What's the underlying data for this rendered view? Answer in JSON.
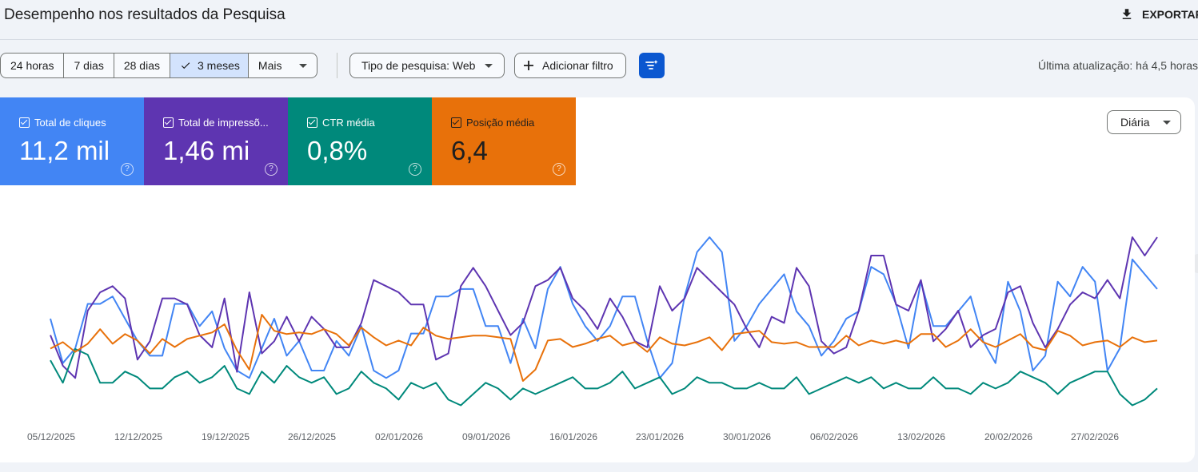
{
  "header": {
    "title": "Desempenho nos resultados da Pesquisa",
    "export_label": "EXPORTAR"
  },
  "date_range": {
    "options": [
      "24 horas",
      "7 dias",
      "28 dias",
      "3 meses",
      "Mais"
    ],
    "selected": "3 meses"
  },
  "filters": {
    "search_type": "Tipo de pesquisa: Web",
    "add_filter": "Adicionar filtro"
  },
  "last_updated": "Última atualização: há 4,5 horas",
  "metrics": [
    {
      "label": "Total de cliques",
      "value": "11,2 mil",
      "color": "#4285f4"
    },
    {
      "label": "Total de impressõ...",
      "value": "1,46 mi",
      "color": "#5e35b1"
    },
    {
      "label": "CTR média",
      "value": "0,8%",
      "color": "#00897b"
    },
    {
      "label": "Posição média",
      "value": "6,4",
      "color": "#e8710a"
    }
  ],
  "granularity": "Diária",
  "chart_data": {
    "type": "line",
    "x_tick_labels": [
      "05/12/2025",
      "12/12/2025",
      "19/12/2025",
      "26/12/2025",
      "02/01/2026",
      "09/01/2026",
      "16/01/2026",
      "23/01/2026",
      "30/01/2026",
      "06/02/2026",
      "13/02/2026",
      "20/02/2026",
      "27/02/2026"
    ],
    "x_range": [
      "04/12/2025",
      "03/03/2026"
    ],
    "y_axis": "none",
    "grid": false,
    "legend": "none",
    "series": [
      {
        "name": "Total de cliques",
        "color": "#4285f4",
        "values": [
          39,
          45,
          43,
          37,
          37,
          36,
          39,
          42,
          44,
          44,
          37,
          37,
          40,
          38,
          43,
          46,
          47,
          43,
          39,
          44,
          42,
          46,
          46,
          42,
          44,
          40,
          46,
          47,
          46,
          41,
          41,
          36,
          36,
          35,
          35,
          40,
          40,
          45,
          39,
          43,
          35,
          32,
          37,
          40,
          42,
          40,
          36,
          36,
          42,
          47,
          45,
          36,
          30,
          28,
          30,
          42,
          40,
          37,
          35,
          33,
          38,
          40,
          44,
          42,
          39,
          38,
          32,
          33,
          37,
          43,
          34,
          40,
          40,
          38,
          36,
          42,
          45,
          34,
          38,
          46,
          44,
          34,
          36,
          32,
          34,
          46,
          43,
          31,
          33,
          35
        ]
      },
      {
        "name": "Total de impressões",
        "color": "#5e35b1",
        "values": [
          44,
          49,
          51,
          40,
          37,
          36,
          38,
          48,
          45,
          38,
          38,
          39,
          44,
          46,
          38,
          50,
          37,
          47,
          45,
          41,
          45,
          41,
          43,
          46,
          46,
          42,
          35,
          36,
          37,
          39,
          39,
          48,
          47,
          36,
          33,
          36,
          40,
          44,
          42,
          36,
          35,
          33,
          38,
          40,
          43,
          38,
          41,
          45,
          46,
          36,
          40,
          38,
          33,
          35,
          37,
          39,
          43,
          46,
          41,
          42,
          33,
          36,
          45,
          47,
          46,
          40,
          31,
          31,
          39,
          40,
          35,
          45,
          43,
          40,
          46,
          44,
          43,
          37,
          36,
          42,
          46,
          43,
          39,
          37,
          38,
          35,
          38,
          28,
          31,
          28
        ]
      },
      {
        "name": "CTR média",
        "color": "#00897b",
        "values": [
          50,
          54,
          48,
          49,
          54,
          54,
          52,
          53,
          55,
          55,
          53,
          52,
          54,
          53,
          51,
          55,
          56,
          52,
          54,
          51,
          53,
          54,
          53,
          56,
          55,
          52,
          54,
          55,
          57,
          54,
          55,
          54,
          57,
          58,
          56,
          54,
          55,
          57,
          55,
          56,
          55,
          54,
          53,
          55,
          55,
          54,
          52,
          55,
          54,
          53,
          56,
          55,
          53,
          54,
          54,
          55,
          55,
          54,
          55,
          55,
          53,
          56,
          55,
          54,
          53,
          54,
          53,
          55,
          54,
          55,
          55,
          53,
          55,
          55,
          56,
          54,
          55,
          54,
          52,
          53,
          54,
          56,
          54,
          53,
          52,
          52,
          56,
          58,
          57,
          55
        ]
      },
      {
        "name": "Posição média",
        "color": "#e8710a",
        "values": [
          6.6,
          6.2,
          6.8,
          6.3,
          5.4,
          6.3,
          5.7,
          6.1,
          6.9,
          6.0,
          6.5,
          6.0,
          5.8,
          5.6,
          5.1,
          6.7,
          7.9,
          4.5,
          5.5,
          5.7,
          5.6,
          5.7,
          5.4,
          5.7,
          6.4,
          5.3,
          5.9,
          6.4,
          6.1,
          6.4,
          5.3,
          5.8,
          6.0,
          5.9,
          5.8,
          5.8,
          5.9,
          6.0,
          8.6,
          7.9,
          6.1,
          6.0,
          6.5,
          6.3,
          6.0,
          5.8,
          6.4,
          6.2,
          6.8,
          5.9,
          6.3,
          6.4,
          6.2,
          5.9,
          6.7,
          5.7,
          5.6,
          5.5,
          6.2,
          6.3,
          6.2,
          6.5,
          6.5,
          6.5,
          5.8,
          6.4,
          6.1,
          6.3,
          6.1,
          6.3,
          5.7,
          5.7,
          6.5,
          6.1,
          5.4,
          6.2,
          6.5,
          6.1,
          5.7,
          6.5,
          6.7,
          5.5,
          5.8,
          6.4,
          6.2,
          6.1,
          6.5,
          5.9,
          6.2,
          6.1
        ]
      }
    ]
  }
}
